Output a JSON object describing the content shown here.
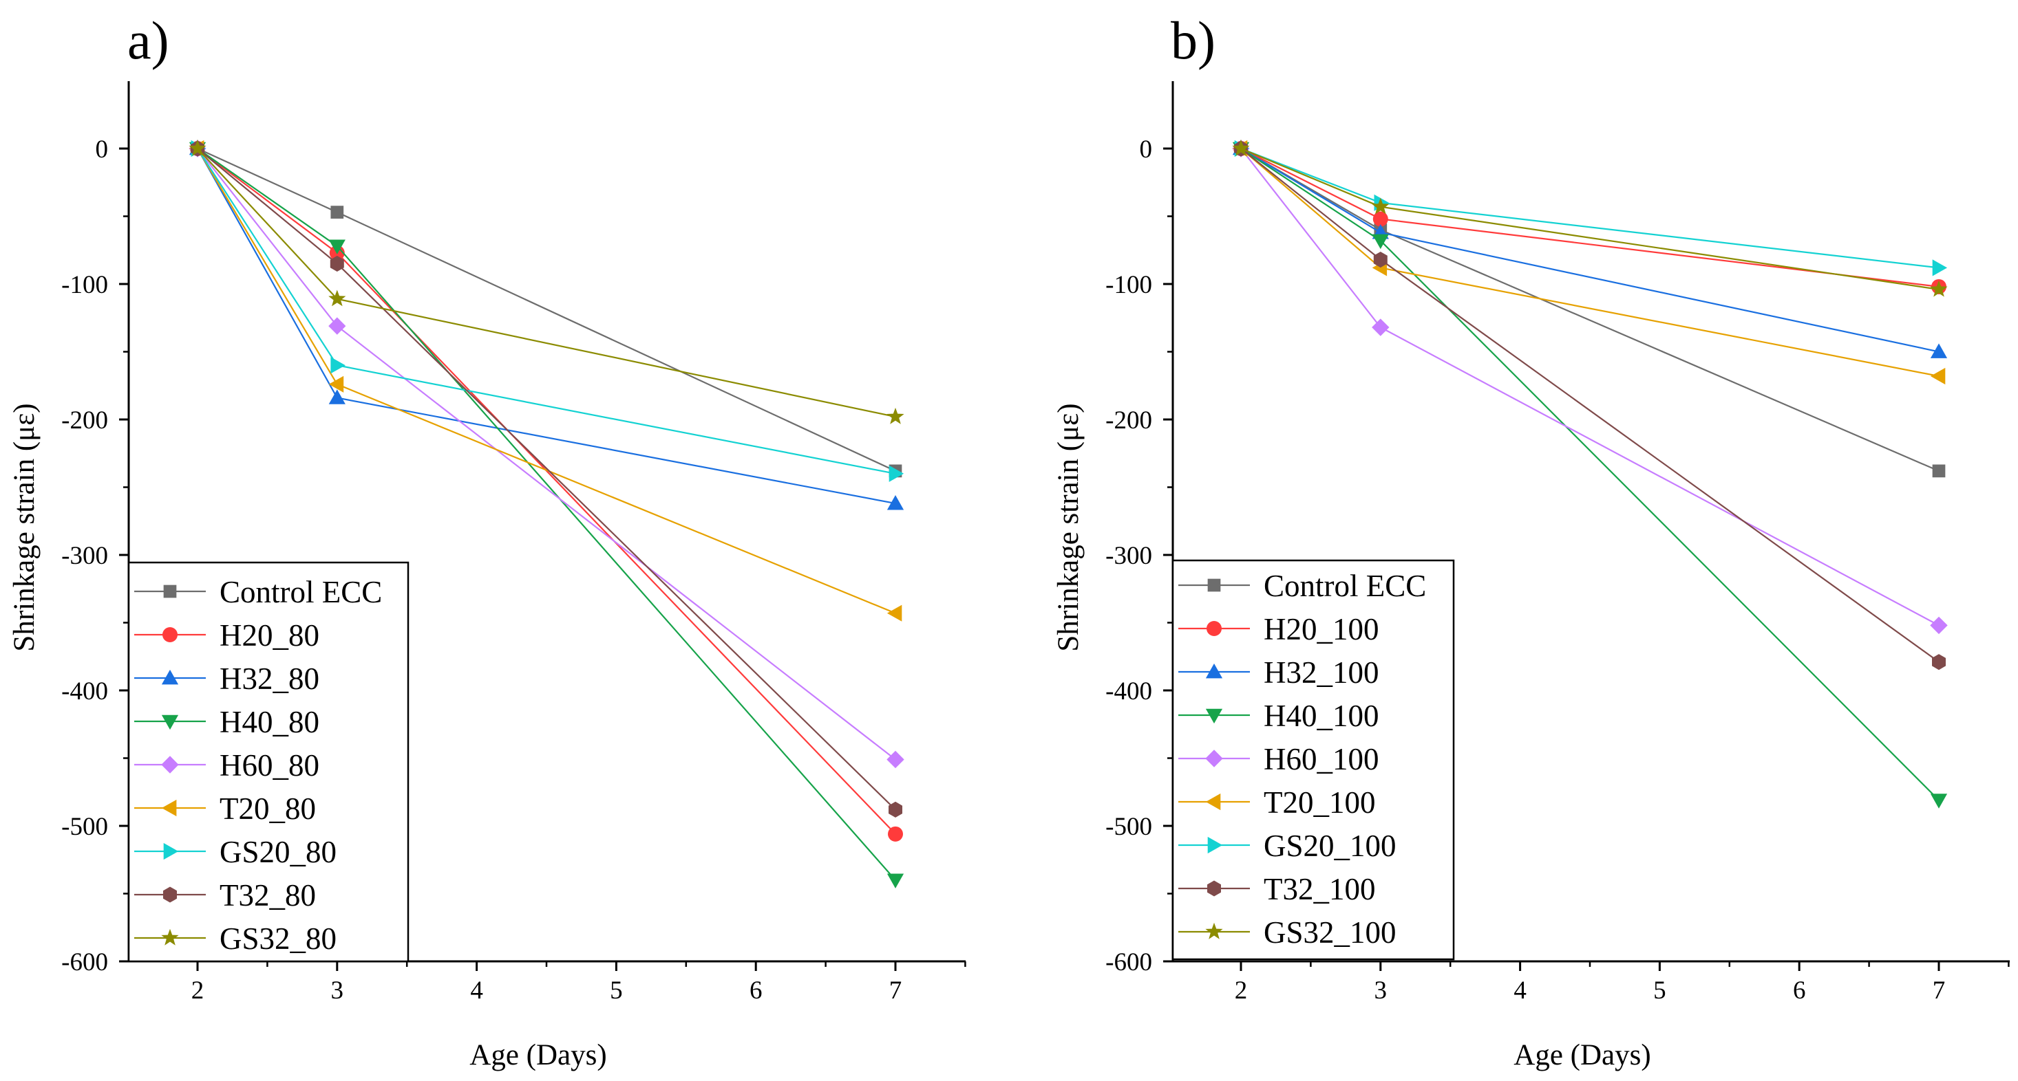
{
  "chart_data": [
    {
      "panel": "a)",
      "type": "line",
      "xlabel": "Age (Days)",
      "ylabel": "Shrinkage strain (με)",
      "xlim": [
        1.5,
        7.5
      ],
      "ylim": [
        -600,
        50
      ],
      "x_ticks": [
        2,
        3,
        4,
        5,
        6,
        7
      ],
      "y_ticks": [
        0,
        -100,
        -200,
        -300,
        -400,
        -500,
        -600
      ],
      "legend_position": "bottom-left",
      "x": [
        2,
        3,
        7
      ],
      "series": [
        {
          "name": "Control ECC",
          "color": "#6d6d6d",
          "marker": "square",
          "values": [
            0,
            -47,
            -238
          ]
        },
        {
          "name": "H20_80",
          "color": "#ff3b3b",
          "marker": "circle",
          "values": [
            0,
            -77,
            -506
          ]
        },
        {
          "name": "H32_80",
          "color": "#1a6fe0",
          "marker": "triangle-up",
          "values": [
            0,
            -184,
            -262
          ]
        },
        {
          "name": "H40_80",
          "color": "#16a34a",
          "marker": "triangle-down",
          "values": [
            0,
            -72,
            -540
          ]
        },
        {
          "name": "H60_80",
          "color": "#c77dff",
          "marker": "diamond",
          "values": [
            0,
            -131,
            -451
          ]
        },
        {
          "name": "T20_80",
          "color": "#e6a100",
          "marker": "triangle-left",
          "values": [
            0,
            -174,
            -343
          ]
        },
        {
          "name": "GS20_80",
          "color": "#14d2d2",
          "marker": "triangle-right",
          "values": [
            0,
            -160,
            -240
          ]
        },
        {
          "name": "T32_80",
          "color": "#7f4a4a",
          "marker": "hexagon",
          "values": [
            0,
            -85,
            -488
          ]
        },
        {
          "name": "GS32_80",
          "color": "#8b8b00",
          "marker": "star",
          "values": [
            0,
            -111,
            -198
          ]
        }
      ]
    },
    {
      "panel": "b)",
      "type": "line",
      "xlabel": "Age (Days)",
      "ylabel": "Shrinkage strain (με)",
      "xlim": [
        1.5,
        7.5
      ],
      "ylim": [
        -600,
        50
      ],
      "x_ticks": [
        2,
        3,
        4,
        5,
        6,
        7
      ],
      "y_ticks": [
        0,
        -100,
        -200,
        -300,
        -400,
        -500,
        -600
      ],
      "legend_position": "bottom-left",
      "x": [
        2,
        3,
        7
      ],
      "series": [
        {
          "name": "Control ECC",
          "color": "#6d6d6d",
          "marker": "square",
          "values": [
            0,
            -60,
            -238
          ]
        },
        {
          "name": "H20_100",
          "color": "#ff3b3b",
          "marker": "circle",
          "values": [
            0,
            -52,
            -102
          ]
        },
        {
          "name": "H32_100",
          "color": "#1a6fe0",
          "marker": "triangle-up",
          "values": [
            0,
            -62,
            -150
          ]
        },
        {
          "name": "H40_100",
          "color": "#16a34a",
          "marker": "triangle-down",
          "values": [
            0,
            -68,
            -481
          ]
        },
        {
          "name": "H60_100",
          "color": "#c77dff",
          "marker": "diamond",
          "values": [
            0,
            -132,
            -352
          ]
        },
        {
          "name": "T20_100",
          "color": "#e6a100",
          "marker": "triangle-left",
          "values": [
            0,
            -88,
            -168
          ]
        },
        {
          "name": "GS20_100",
          "color": "#14d2d2",
          "marker": "triangle-right",
          "values": [
            0,
            -40,
            -88
          ]
        },
        {
          "name": "T32_100",
          "color": "#7f4a4a",
          "marker": "hexagon",
          "values": [
            0,
            -82,
            -379
          ]
        },
        {
          "name": "GS32_100",
          "color": "#8b8b00",
          "marker": "star",
          "values": [
            0,
            -43,
            -104
          ]
        }
      ]
    }
  ]
}
